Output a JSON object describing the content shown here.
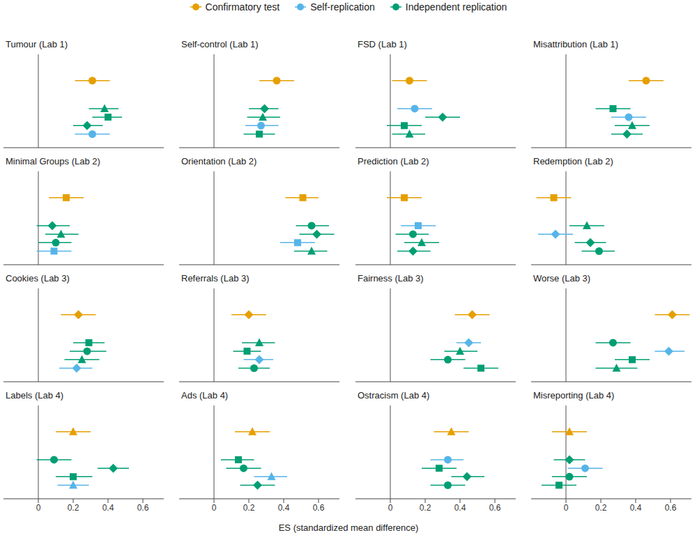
{
  "chart_data": {
    "type": "forest",
    "xlabel": "ES (standardized mean difference)",
    "xlim": [
      -0.2,
      0.72
    ],
    "xticks": [
      0,
      0.2,
      0.4,
      0.6
    ],
    "legend": "top",
    "series": [
      {
        "name": "Confirmatory test",
        "color": "#e69f00"
      },
      {
        "name": "Self-replication",
        "color": "#56b4e9"
      },
      {
        "name": "Independent replication",
        "color": "#009e73"
      }
    ],
    "panels": [
      {
        "title": "Tumour (Lab 1)",
        "points": [
          {
            "group": "Confirmatory test",
            "marker": "circle",
            "value": 0.31,
            "lower": 0.21,
            "upper": 0.41
          },
          {
            "group": "Independent replication",
            "marker": "triangle",
            "value": 0.38,
            "lower": 0.29,
            "upper": 0.46
          },
          {
            "group": "Independent replication",
            "marker": "square",
            "value": 0.4,
            "lower": 0.31,
            "upper": 0.48
          },
          {
            "group": "Independent replication",
            "marker": "diamond",
            "value": 0.28,
            "lower": 0.2,
            "upper": 0.37
          },
          {
            "group": "Self-replication",
            "marker": "circle",
            "value": 0.31,
            "lower": 0.21,
            "upper": 0.41
          }
        ]
      },
      {
        "title": "Self-control (Lab 1)",
        "points": [
          {
            "group": "Confirmatory test",
            "marker": "circle",
            "value": 0.36,
            "lower": 0.26,
            "upper": 0.46
          },
          {
            "group": "Independent replication",
            "marker": "diamond",
            "value": 0.29,
            "lower": 0.2,
            "upper": 0.37
          },
          {
            "group": "Independent replication",
            "marker": "triangle",
            "value": 0.28,
            "lower": 0.19,
            "upper": 0.38
          },
          {
            "group": "Self-replication",
            "marker": "circle",
            "value": 0.27,
            "lower": 0.18,
            "upper": 0.37
          },
          {
            "group": "Independent replication",
            "marker": "square",
            "value": 0.26,
            "lower": 0.17,
            "upper": 0.35
          }
        ]
      },
      {
        "title": "FSD (Lab 1)",
        "points": [
          {
            "group": "Confirmatory test",
            "marker": "circle",
            "value": 0.11,
            "lower": 0.01,
            "upper": 0.21
          },
          {
            "group": "Self-replication",
            "marker": "circle",
            "value": 0.14,
            "lower": 0.04,
            "upper": 0.24
          },
          {
            "group": "Independent replication",
            "marker": "diamond",
            "value": 0.3,
            "lower": 0.2,
            "upper": 0.4
          },
          {
            "group": "Independent replication",
            "marker": "square",
            "value": 0.08,
            "lower": -0.02,
            "upper": 0.18
          },
          {
            "group": "Independent replication",
            "marker": "triangle",
            "value": 0.11,
            "lower": 0.01,
            "upper": 0.2
          }
        ]
      },
      {
        "title": "Misattribution (Lab 1)",
        "points": [
          {
            "group": "Confirmatory test",
            "marker": "circle",
            "value": 0.46,
            "lower": 0.36,
            "upper": 0.56
          },
          {
            "group": "Independent replication",
            "marker": "square",
            "value": 0.27,
            "lower": 0.17,
            "upper": 0.37
          },
          {
            "group": "Self-replication",
            "marker": "circle",
            "value": 0.36,
            "lower": 0.26,
            "upper": 0.46
          },
          {
            "group": "Independent replication",
            "marker": "triangle",
            "value": 0.38,
            "lower": 0.28,
            "upper": 0.48
          },
          {
            "group": "Independent replication",
            "marker": "diamond",
            "value": 0.35,
            "lower": 0.26,
            "upper": 0.44
          }
        ]
      },
      {
        "title": "Minimal Groups (Lab 2)",
        "points": [
          {
            "group": "Confirmatory test",
            "marker": "square",
            "value": 0.16,
            "lower": 0.06,
            "upper": 0.26
          },
          {
            "group": "Independent replication",
            "marker": "diamond",
            "value": 0.08,
            "lower": -0.01,
            "upper": 0.18
          },
          {
            "group": "Independent replication",
            "marker": "triangle",
            "value": 0.13,
            "lower": 0.04,
            "upper": 0.23
          },
          {
            "group": "Independent replication",
            "marker": "circle",
            "value": 0.1,
            "lower": 0.0,
            "upper": 0.19
          },
          {
            "group": "Self-replication",
            "marker": "square",
            "value": 0.09,
            "lower": -0.01,
            "upper": 0.19
          }
        ]
      },
      {
        "title": "Orientation (Lab 2)",
        "points": [
          {
            "group": "Confirmatory test",
            "marker": "square",
            "value": 0.51,
            "lower": 0.41,
            "upper": 0.6
          },
          {
            "group": "Independent replication",
            "marker": "circle",
            "value": 0.56,
            "lower": 0.47,
            "upper": 0.66
          },
          {
            "group": "Independent replication",
            "marker": "diamond",
            "value": 0.59,
            "lower": 0.49,
            "upper": 0.69
          },
          {
            "group": "Self-replication",
            "marker": "square",
            "value": 0.48,
            "lower": 0.38,
            "upper": 0.58
          },
          {
            "group": "Independent replication",
            "marker": "triangle",
            "value": 0.56,
            "lower": 0.46,
            "upper": 0.65
          }
        ]
      },
      {
        "title": "Prediction (Lab 2)",
        "points": [
          {
            "group": "Confirmatory test",
            "marker": "square",
            "value": 0.08,
            "lower": -0.02,
            "upper": 0.18
          },
          {
            "group": "Self-replication",
            "marker": "square",
            "value": 0.16,
            "lower": 0.06,
            "upper": 0.26
          },
          {
            "group": "Independent replication",
            "marker": "circle",
            "value": 0.13,
            "lower": 0.03,
            "upper": 0.22
          },
          {
            "group": "Independent replication",
            "marker": "triangle",
            "value": 0.18,
            "lower": 0.08,
            "upper": 0.28
          },
          {
            "group": "Independent replication",
            "marker": "diamond",
            "value": 0.13,
            "lower": 0.04,
            "upper": 0.23
          }
        ]
      },
      {
        "title": "Redemption (Lab 2)",
        "points": [
          {
            "group": "Confirmatory test",
            "marker": "square",
            "value": -0.07,
            "lower": -0.17,
            "upper": 0.03
          },
          {
            "group": "Independent replication",
            "marker": "triangle",
            "value": 0.12,
            "lower": 0.02,
            "upper": 0.22
          },
          {
            "group": "Self-replication",
            "marker": "diamond",
            "value": -0.06,
            "lower": -0.16,
            "upper": 0.04
          },
          {
            "group": "Independent replication",
            "marker": "diamond",
            "value": 0.14,
            "lower": 0.05,
            "upper": 0.23
          },
          {
            "group": "Independent replication",
            "marker": "circle",
            "value": 0.19,
            "lower": 0.09,
            "upper": 0.28
          }
        ]
      },
      {
        "title": "Cookies (Lab 3)",
        "points": [
          {
            "group": "Confirmatory test",
            "marker": "diamond",
            "value": 0.23,
            "lower": 0.13,
            "upper": 0.33
          },
          {
            "group": "Independent replication",
            "marker": "square",
            "value": 0.29,
            "lower": 0.2,
            "upper": 0.38
          },
          {
            "group": "Independent replication",
            "marker": "circle",
            "value": 0.28,
            "lower": 0.18,
            "upper": 0.39
          },
          {
            "group": "Independent replication",
            "marker": "triangle",
            "value": 0.25,
            "lower": 0.15,
            "upper": 0.35
          },
          {
            "group": "Self-replication",
            "marker": "diamond",
            "value": 0.22,
            "lower": 0.12,
            "upper": 0.31
          }
        ]
      },
      {
        "title": "Referrals (Lab 3)",
        "points": [
          {
            "group": "Confirmatory test",
            "marker": "diamond",
            "value": 0.2,
            "lower": 0.1,
            "upper": 0.3
          },
          {
            "group": "Independent replication",
            "marker": "triangle",
            "value": 0.26,
            "lower": 0.16,
            "upper": 0.35
          },
          {
            "group": "Independent replication",
            "marker": "square",
            "value": 0.19,
            "lower": 0.11,
            "upper": 0.27
          },
          {
            "group": "Self-replication",
            "marker": "diamond",
            "value": 0.26,
            "lower": 0.17,
            "upper": 0.34
          },
          {
            "group": "Independent replication",
            "marker": "circle",
            "value": 0.23,
            "lower": 0.14,
            "upper": 0.32
          }
        ]
      },
      {
        "title": "Fairness (Lab 3)",
        "points": [
          {
            "group": "Confirmatory test",
            "marker": "diamond",
            "value": 0.47,
            "lower": 0.37,
            "upper": 0.57
          },
          {
            "group": "Self-replication",
            "marker": "diamond",
            "value": 0.45,
            "lower": 0.38,
            "upper": 0.52
          },
          {
            "group": "Independent replication",
            "marker": "triangle",
            "value": 0.4,
            "lower": 0.31,
            "upper": 0.5
          },
          {
            "group": "Independent replication",
            "marker": "circle",
            "value": 0.33,
            "lower": 0.23,
            "upper": 0.43
          },
          {
            "group": "Independent replication",
            "marker": "square",
            "value": 0.52,
            "lower": 0.42,
            "upper": 0.62
          }
        ]
      },
      {
        "title": "Worse (Lab 3)",
        "points": [
          {
            "group": "Confirmatory test",
            "marker": "diamond",
            "value": 0.61,
            "lower": 0.51,
            "upper": 0.71
          },
          {
            "group": "Independent replication",
            "marker": "circle",
            "value": 0.27,
            "lower": 0.17,
            "upper": 0.37
          },
          {
            "group": "Self-replication",
            "marker": "diamond",
            "value": 0.59,
            "lower": 0.51,
            "upper": 0.68
          },
          {
            "group": "Independent replication",
            "marker": "square",
            "value": 0.38,
            "lower": 0.28,
            "upper": 0.48
          },
          {
            "group": "Independent replication",
            "marker": "triangle",
            "value": 0.29,
            "lower": 0.17,
            "upper": 0.41
          }
        ]
      },
      {
        "title": "Labels (Lab 4)",
        "points": [
          {
            "group": "Confirmatory test",
            "marker": "triangle",
            "value": 0.2,
            "lower": 0.1,
            "upper": 0.3
          },
          {
            "group": "Independent replication",
            "marker": "circle",
            "value": 0.09,
            "lower": -0.01,
            "upper": 0.19
          },
          {
            "group": "Independent replication",
            "marker": "diamond",
            "value": 0.43,
            "lower": 0.34,
            "upper": 0.52
          },
          {
            "group": "Independent replication",
            "marker": "square",
            "value": 0.2,
            "lower": 0.1,
            "upper": 0.31
          },
          {
            "group": "Self-replication",
            "marker": "triangle",
            "value": 0.2,
            "lower": 0.11,
            "upper": 0.29
          }
        ]
      },
      {
        "title": "Ads (Lab 4)",
        "points": [
          {
            "group": "Confirmatory test",
            "marker": "triangle",
            "value": 0.22,
            "lower": 0.12,
            "upper": 0.32
          },
          {
            "group": "Independent replication",
            "marker": "square",
            "value": 0.14,
            "lower": 0.04,
            "upper": 0.23
          },
          {
            "group": "Independent replication",
            "marker": "circle",
            "value": 0.17,
            "lower": 0.07,
            "upper": 0.27
          },
          {
            "group": "Self-replication",
            "marker": "triangle",
            "value": 0.33,
            "lower": 0.23,
            "upper": 0.42
          },
          {
            "group": "Independent replication",
            "marker": "diamond",
            "value": 0.25,
            "lower": 0.15,
            "upper": 0.35
          }
        ]
      },
      {
        "title": "Ostracism (Lab 4)",
        "points": [
          {
            "group": "Confirmatory test",
            "marker": "triangle",
            "value": 0.35,
            "lower": 0.25,
            "upper": 0.45
          },
          {
            "group": "Self-replication",
            "marker": "circle",
            "value": 0.33,
            "lower": 0.23,
            "upper": 0.42
          },
          {
            "group": "Independent replication",
            "marker": "square",
            "value": 0.28,
            "lower": 0.18,
            "upper": 0.38
          },
          {
            "group": "Independent replication",
            "marker": "diamond",
            "value": 0.44,
            "lower": 0.35,
            "upper": 0.54
          },
          {
            "group": "Independent replication",
            "marker": "circle",
            "value": 0.33,
            "lower": 0.23,
            "upper": 0.43
          }
        ]
      },
      {
        "title": "Misreporting (Lab 4)",
        "points": [
          {
            "group": "Confirmatory test",
            "marker": "triangle",
            "value": 0.02,
            "lower": -0.08,
            "upper": 0.12
          },
          {
            "group": "Independent replication",
            "marker": "diamond",
            "value": 0.02,
            "lower": -0.07,
            "upper": 0.11
          },
          {
            "group": "Self-replication",
            "marker": "circle",
            "value": 0.11,
            "lower": 0.01,
            "upper": 0.21
          },
          {
            "group": "Independent replication",
            "marker": "circle",
            "value": 0.02,
            "lower": -0.08,
            "upper": 0.12
          },
          {
            "group": "Independent replication",
            "marker": "square",
            "value": -0.04,
            "lower": -0.14,
            "upper": 0.06
          }
        ]
      }
    ]
  }
}
